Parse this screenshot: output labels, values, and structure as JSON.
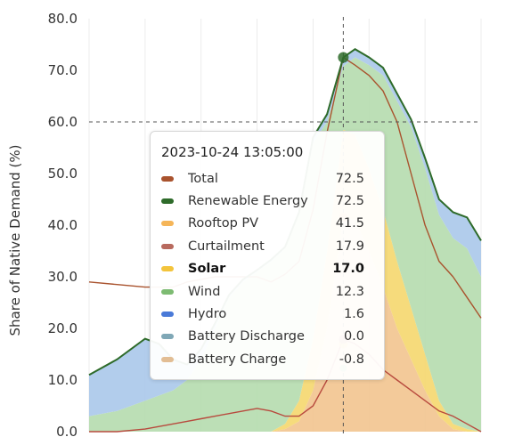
{
  "chart_data": {
    "type": "area",
    "ylabel": "Share of Native Demand (%)",
    "y_ticks": [
      "80.0",
      "70.0",
      "60.0",
      "50.0",
      "40.0",
      "30.0",
      "20.0",
      "10.0",
      "0.0"
    ],
    "ylim": [
      0,
      80
    ],
    "grid": "vertical-lines",
    "reference_line_y": 60,
    "crosshair_time": "13:05",
    "x_hours": [
      4.0,
      5.0,
      6.0,
      6.5,
      7.0,
      7.5,
      8.0,
      8.5,
      9.0,
      9.5,
      10.0,
      10.5,
      11.0,
      11.5,
      12.0,
      12.5,
      13.08,
      13.5,
      14.0,
      14.5,
      15.0,
      15.5,
      16.0,
      16.5,
      17.0,
      17.5,
      18.0
    ],
    "series": [
      {
        "name": "Rooftop PV",
        "color": "#f2c48f",
        "fill": true,
        "values": [
          0,
          0,
          0,
          0,
          0,
          0,
          0,
          0,
          0,
          0,
          0,
          0,
          0.5,
          2,
          8,
          20,
          41.5,
          41,
          35,
          28,
          20,
          14,
          8,
          3,
          0.5,
          0,
          0
        ]
      },
      {
        "name": "Solar",
        "color": "#f5d76e",
        "fill": true,
        "values": [
          0,
          0,
          0,
          0,
          0,
          0,
          0,
          0,
          0,
          0,
          0,
          0,
          1,
          4,
          10,
          15,
          17.0,
          16.5,
          16,
          15,
          13,
          10,
          7,
          3,
          1,
          0.5,
          0
        ]
      },
      {
        "name": "Wind",
        "color": "#b5dcae",
        "fill": true,
        "values": [
          3,
          4,
          6,
          7,
          8,
          10,
          14,
          20,
          26,
          29,
          31,
          33,
          34,
          36,
          38,
          25,
          12.3,
          15,
          20,
          26,
          31,
          35,
          36,
          36,
          36,
          35,
          30
        ]
      },
      {
        "name": "Hydro",
        "color": "#aac8ea",
        "fill": true,
        "values": [
          8,
          10,
          12,
          10,
          6,
          3,
          2,
          1,
          0.5,
          0.5,
          0.3,
          0.3,
          0.3,
          0.5,
          1,
          1.5,
          1.6,
          1.6,
          1.5,
          1.5,
          1.5,
          1.5,
          2,
          3,
          5,
          6,
          7
        ]
      },
      {
        "name": "Renewable Energy",
        "color": "#2e6b2a",
        "fill": false,
        "values": [
          11,
          14,
          18,
          17,
          14,
          13,
          16,
          21,
          26.5,
          29.5,
          31.3,
          33.3,
          35.8,
          42.5,
          57,
          61.5,
          72.5,
          74.1,
          72.5,
          70.5,
          65.5,
          60.5,
          53,
          45,
          42.5,
          41.5,
          37
        ]
      },
      {
        "name": "Total",
        "color": "#a9532e",
        "fill": false,
        "values": [
          29,
          28.5,
          28,
          28,
          28,
          29,
          29.5,
          30,
          30,
          30,
          30,
          29,
          30.5,
          33,
          43,
          58,
          72.5,
          71,
          69,
          66,
          60,
          50,
          40,
          33,
          30,
          26,
          22
        ]
      },
      {
        "name": "Curtailment",
        "color": "#b84a3e",
        "fill": false,
        "values": [
          0,
          0,
          0.5,
          1,
          1.5,
          2,
          2.5,
          3,
          3.5,
          4,
          4.5,
          4,
          3,
          3,
          5,
          10,
          17.9,
          17,
          15,
          12,
          10,
          8,
          6,
          4,
          3,
          1.5,
          0
        ]
      }
    ],
    "tooltip": {
      "title": "2023-10-24 13:05:00",
      "rows": [
        {
          "name": "Total",
          "value": "72.5",
          "color": "#a9532e",
          "bold": false
        },
        {
          "name": "Renewable Energy",
          "value": "72.5",
          "color": "#2e6b2a",
          "bold": false
        },
        {
          "name": "Rooftop PV",
          "value": "41.5",
          "color": "#f5b558",
          "bold": false
        },
        {
          "name": "Curtailment",
          "value": "17.9",
          "color": "#b86a5e",
          "bold": false
        },
        {
          "name": "Solar",
          "value": "17.0",
          "color": "#f3c43c",
          "bold": true
        },
        {
          "name": "Wind",
          "value": "12.3",
          "color": "#7dbb72",
          "bold": false
        },
        {
          "name": "Hydro",
          "value": "1.6",
          "color": "#4a7ad8",
          "bold": false
        },
        {
          "name": "Battery Discharge",
          "value": "0.0",
          "color": "#7fa7b6",
          "bold": false
        },
        {
          "name": "Battery Charge",
          "value": "-0.8",
          "color": "#e2bd94",
          "bold": false
        }
      ]
    }
  }
}
